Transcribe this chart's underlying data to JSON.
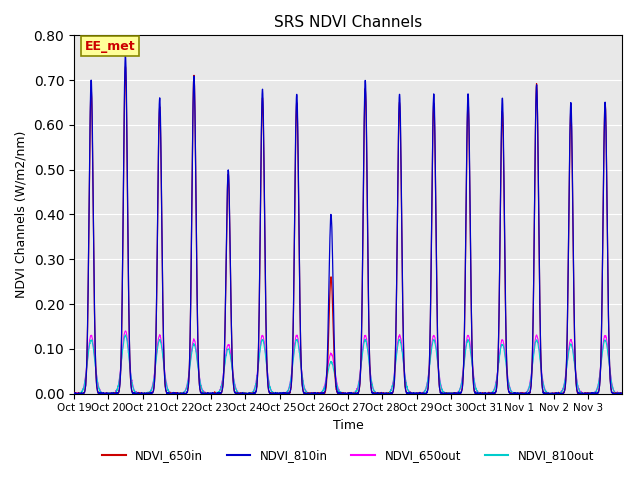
{
  "title": "SRS NDVI Channels",
  "xlabel": "Time",
  "ylabel": "NDVI Channels (W/m2/nm)",
  "ylim": [
    0.0,
    0.8
  ],
  "yticks": [
    0.0,
    0.1,
    0.2,
    0.3,
    0.4,
    0.5,
    0.6,
    0.7,
    0.8
  ],
  "xtick_labels": [
    "Oct 19",
    "Oct 20",
    "Oct 21",
    "Oct 22",
    "Oct 23",
    "Oct 24",
    "Oct 25",
    "Oct 26",
    "Oct 27",
    "Oct 28",
    "Oct 29",
    "Oct 30",
    "Oct 31",
    "Nov 1",
    "Nov 2",
    "Nov 3"
  ],
  "bg_color": "#e8e8e8",
  "annotation_text": "EE_met",
  "annotation_color": "#cc0000",
  "annotation_bg": "#ffff99",
  "annotation_border": "#888800",
  "colors": {
    "NDVI_650in": "#cc0000",
    "NDVI_810in": "#0000cc",
    "NDVI_650out": "#ff00ff",
    "NDVI_810out": "#00cccc"
  },
  "legend_labels": [
    "NDVI_650in",
    "NDVI_810in",
    "NDVI_650out",
    "NDVI_810out"
  ],
  "peak_810in": [
    0.7,
    0.755,
    0.66,
    0.71,
    0.5,
    0.68,
    0.67,
    0.4,
    0.7,
    0.67,
    0.67,
    0.67,
    0.66,
    0.69,
    0.65,
    0.65
  ],
  "peak_650in": [
    0.68,
    0.73,
    0.64,
    0.71,
    0.49,
    0.66,
    0.65,
    0.26,
    0.68,
    0.65,
    0.65,
    0.65,
    0.63,
    0.69,
    0.63,
    0.65
  ],
  "peak_650out": [
    0.13,
    0.14,
    0.13,
    0.12,
    0.11,
    0.13,
    0.13,
    0.09,
    0.13,
    0.13,
    0.13,
    0.13,
    0.12,
    0.13,
    0.12,
    0.13
  ],
  "peak_810out": [
    0.12,
    0.13,
    0.12,
    0.11,
    0.1,
    0.12,
    0.12,
    0.07,
    0.12,
    0.12,
    0.12,
    0.12,
    0.11,
    0.12,
    0.11,
    0.12
  ]
}
